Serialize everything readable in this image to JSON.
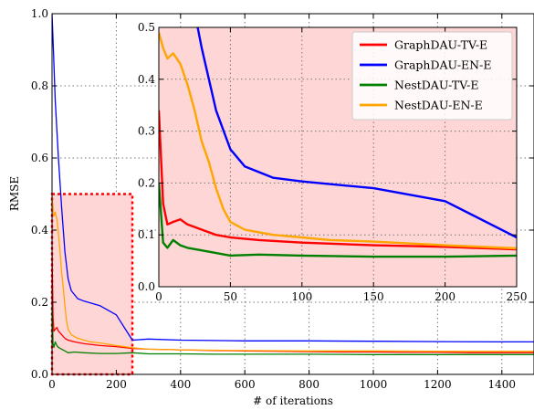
{
  "chart_data": [
    {
      "type": "line",
      "xlabel": "# of iterations",
      "ylabel": "RMSE",
      "xlim": [
        0,
        1500
      ],
      "ylim": [
        0,
        1.0
      ],
      "xticks": [
        "0",
        "200",
        "400",
        "600",
        "800",
        "1000",
        "1200",
        "1400"
      ],
      "yticks": [
        "0.0",
        "0.2",
        "0.4",
        "0.6",
        "0.8",
        "1.0"
      ],
      "grid": true,
      "highlight_region": {
        "x": [
          0,
          250
        ],
        "y": [
          0,
          0.5
        ],
        "color": "#ffd6d6"
      },
      "series": [
        {
          "name": "GraphDAU-TV-E",
          "color": "#ff0000",
          "x": [
            0,
            3,
            6,
            10,
            15,
            20,
            30,
            40,
            50,
            70,
            100,
            150,
            200,
            250,
            300,
            400,
            500,
            600,
            700,
            800,
            900,
            1000,
            1100,
            1200,
            1300,
            1400,
            1500
          ],
          "y": [
            0.34,
            0.16,
            0.12,
            0.125,
            0.13,
            0.12,
            0.11,
            0.1,
            0.095,
            0.09,
            0.085,
            0.08,
            0.077,
            0.072,
            0.07,
            0.068,
            0.066,
            0.065,
            0.064,
            0.063,
            0.062,
            0.062,
            0.061,
            0.061,
            0.06,
            0.06,
            0.06
          ]
        },
        {
          "name": "GraphDAU-EN-E",
          "color": "#0000ff",
          "x": [
            0,
            5,
            10,
            20,
            30,
            40,
            50,
            60,
            80,
            100,
            150,
            200,
            250,
            300,
            400,
            500,
            600,
            800,
            1000,
            1200,
            1400,
            1500
          ],
          "y": [
            1.0,
            0.88,
            0.76,
            0.6,
            0.46,
            0.34,
            0.265,
            0.232,
            0.21,
            0.203,
            0.19,
            0.165,
            0.095,
            0.098,
            0.095,
            0.094,
            0.093,
            0.093,
            0.092,
            0.091,
            0.09,
            0.09
          ]
        },
        {
          "name": "NestDAU-TV-E",
          "color": "#008000",
          "x": [
            0,
            3,
            6,
            10,
            15,
            20,
            30,
            40,
            50,
            70,
            100,
            150,
            200,
            250,
            300,
            400,
            500,
            600,
            800,
            1000,
            1200,
            1400,
            1500
          ],
          "y": [
            0.2,
            0.085,
            0.075,
            0.09,
            0.08,
            0.075,
            0.07,
            0.065,
            0.06,
            0.062,
            0.06,
            0.058,
            0.058,
            0.06,
            0.057,
            0.057,
            0.056,
            0.056,
            0.056,
            0.055,
            0.055,
            0.055,
            0.055
          ]
        },
        {
          "name": "NestDAU-EN-E",
          "color": "#ffa500",
          "x": [
            0,
            3,
            6,
            10,
            15,
            20,
            25,
            30,
            35,
            40,
            45,
            50,
            60,
            70,
            80,
            100,
            120,
            150,
            200,
            250,
            300,
            400,
            500,
            600,
            800,
            1000,
            1200,
            1400,
            1500
          ],
          "y": [
            0.49,
            0.46,
            0.44,
            0.45,
            0.43,
            0.39,
            0.34,
            0.28,
            0.24,
            0.19,
            0.15,
            0.125,
            0.11,
            0.105,
            0.1,
            0.095,
            0.09,
            0.087,
            0.08,
            0.074,
            0.07,
            0.068,
            0.067,
            0.066,
            0.065,
            0.065,
            0.064,
            0.064,
            0.064
          ]
        }
      ]
    },
    {
      "type": "line",
      "inset": true,
      "xlim": [
        0,
        250
      ],
      "ylim": [
        0,
        0.5
      ],
      "xticks": [
        "0",
        "50",
        "100",
        "150",
        "200",
        "250"
      ],
      "yticks": [
        "0.0",
        "0.1",
        "0.2",
        "0.3",
        "0.4",
        "0.5"
      ],
      "grid": true,
      "legend": "top-right",
      "background": "#ffd6d6",
      "series_ref": "same as main chart, zoomed to 0-250 iterations"
    }
  ]
}
